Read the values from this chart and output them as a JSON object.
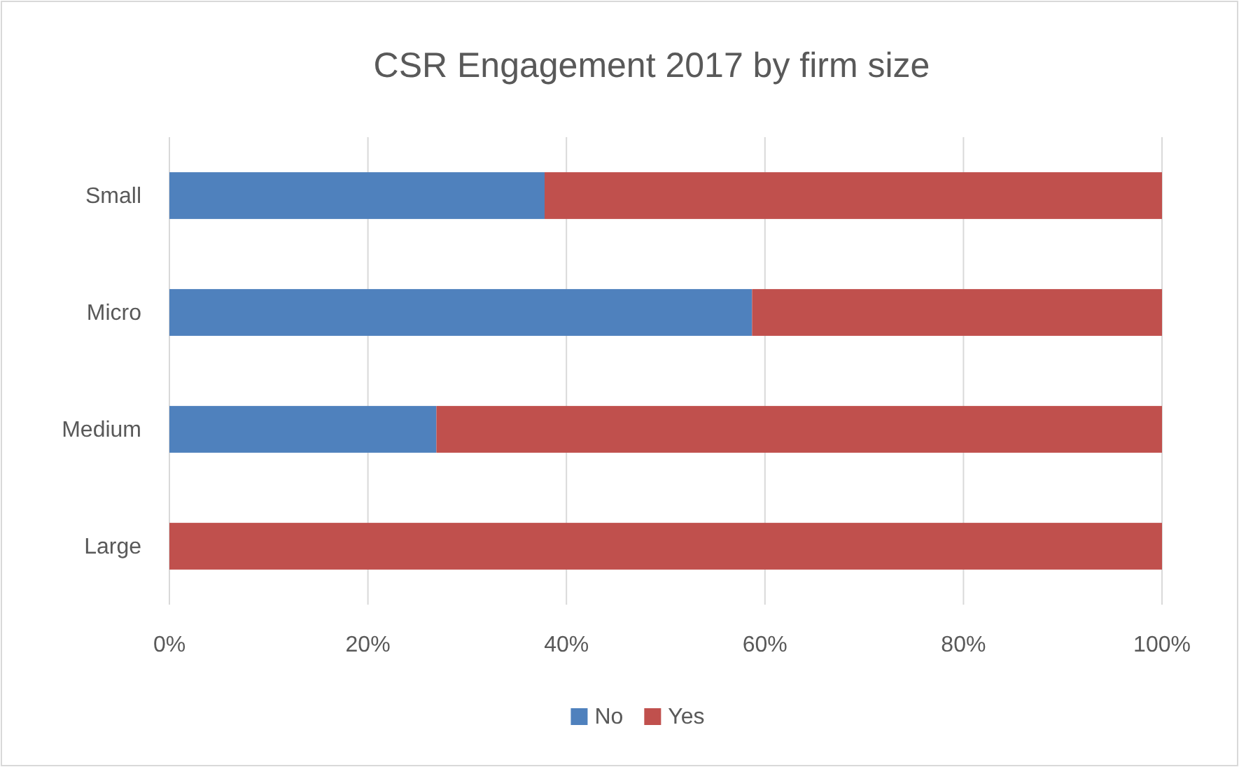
{
  "chart_data": {
    "type": "bar",
    "orientation": "horizontal",
    "stacked": true,
    "title": "CSR Engagement 2017 by firm size",
    "categories": [
      "Small",
      "Micro",
      "Medium",
      "Large"
    ],
    "series": [
      {
        "name": "No",
        "color": "#4f81bd",
        "values": [
          37.8,
          58.7,
          26.9,
          0
        ]
      },
      {
        "name": "Yes",
        "color": "#c0504d",
        "values": [
          62.2,
          41.3,
          73.1,
          100
        ]
      }
    ],
    "xlim": [
      0,
      100
    ],
    "xticks": [
      {
        "value": 0,
        "label": "0%"
      },
      {
        "value": 20,
        "label": "20%"
      },
      {
        "value": 40,
        "label": "40%"
      },
      {
        "value": 60,
        "label": "60%"
      },
      {
        "value": 80,
        "label": "80%"
      },
      {
        "value": 100,
        "label": "100%"
      }
    ],
    "grid": "x",
    "legend": "bottom"
  }
}
